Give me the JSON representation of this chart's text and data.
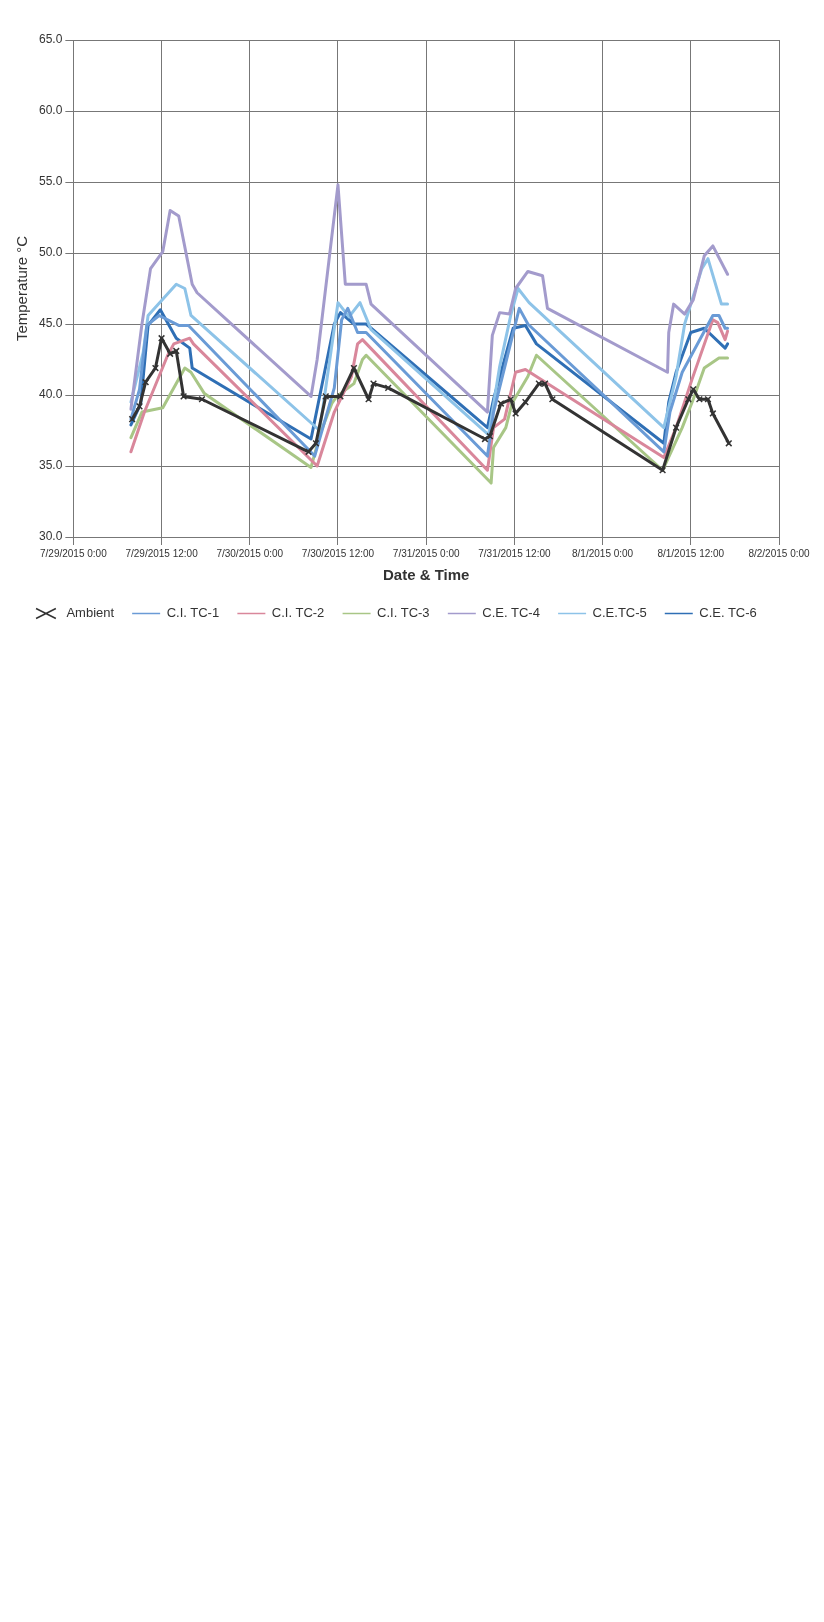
{
  "chart_data": {
    "type": "line",
    "xlabel": "Date & Time",
    "ylabel": "Temperature °C",
    "grid": true,
    "legend": "bottom",
    "marker": "none",
    "line_style": "solid",
    "xlim": [
      "2015-07-29T00:00",
      "2015-08-02T00:00"
    ],
    "xticks": [
      {
        "value": "2015-07-29T00:00",
        "label": "7/29/2015 0:00"
      },
      {
        "value": "2015-07-29T12:00",
        "label": "7/29/2015 12:00"
      },
      {
        "value": "2015-07-30T00:00",
        "label": "7/30/2015 0:00"
      },
      {
        "value": "2015-07-30T12:00",
        "label": "7/30/2015 12:00"
      },
      {
        "value": "2015-07-31T00:00",
        "label": "7/31/2015 0:00"
      },
      {
        "value": "2015-07-31T12:00",
        "label": "7/31/2015 12:00"
      },
      {
        "value": "2015-08-01T00:00",
        "label": "8/1/2015 0:00"
      },
      {
        "value": "2015-08-01T12:00",
        "label": "8/1/2015 12:00"
      },
      {
        "value": "2015-08-02T00:00",
        "label": "8/2/2015 0:00"
      }
    ],
    "ylim": [
      30,
      65
    ],
    "yticks": [
      {
        "value": 30,
        "label": "30.0"
      },
      {
        "value": 35,
        "label": "35.0"
      },
      {
        "value": 40,
        "label": "40.0"
      },
      {
        "value": 45,
        "label": "45.0"
      },
      {
        "value": 50,
        "label": "50.0"
      },
      {
        "value": 55,
        "label": "55.0"
      },
      {
        "value": 60,
        "label": "60.0"
      },
      {
        "value": 65,
        "label": "65.0"
      }
    ],
    "series": [
      {
        "name": "Ambient",
        "color": "#333333",
        "marker": "cross",
        "x": [
          "2015-07-29T08:00",
          "2015-07-29T09:00",
          "2015-07-29T09:50",
          "2015-07-29T11:10",
          "2015-07-29T12:00",
          "2015-07-29T13:10",
          "2015-07-29T14:00",
          "2015-07-29T15:00",
          "2015-07-29T17:30",
          "2015-07-30T08:00",
          "2015-07-30T09:00",
          "2015-07-30T10:20",
          "2015-07-30T12:20",
          "2015-07-30T14:10",
          "2015-07-30T16:10",
          "2015-07-30T16:50",
          "2015-07-30T18:50",
          "2015-07-31T08:00",
          "2015-07-31T08:40",
          "2015-07-31T10:10",
          "2015-07-31T11:30",
          "2015-07-31T12:10",
          "2015-07-31T13:30",
          "2015-07-31T15:20",
          "2015-07-31T16:10",
          "2015-07-31T17:10",
          "2015-08-01T08:10",
          "2015-08-01T10:00",
          "2015-08-01T11:40",
          "2015-08-01T12:20",
          "2015-08-01T13:10",
          "2015-08-01T14:20",
          "2015-08-01T15:00",
          "2015-08-01T17:10"
        ],
        "values": [
          38.3,
          39.2,
          40.9,
          41.9,
          44.0,
          42.9,
          43.1,
          39.9,
          39.7,
          36.0,
          36.6,
          39.9,
          39.9,
          41.9,
          39.7,
          40.8,
          40.5,
          36.9,
          37.1,
          39.4,
          39.7,
          38.7,
          39.5,
          40.8,
          40.8,
          39.7,
          34.7,
          37.7,
          39.7,
          40.4,
          39.7,
          39.7,
          38.7,
          36.6
        ]
      },
      {
        "name": "C.I. TC-1",
        "color": "#6a9bd6",
        "x": [
          "2015-07-29T07:50",
          "2015-07-29T09:00",
          "2015-07-29T10:00",
          "2015-07-29T11:40",
          "2015-07-29T14:20",
          "2015-07-29T15:40",
          "2015-07-30T08:50",
          "2015-07-30T11:30",
          "2015-07-30T12:30",
          "2015-07-30T13:20",
          "2015-07-30T14:40",
          "2015-07-30T15:50",
          "2015-07-31T08:20",
          "2015-07-31T09:10",
          "2015-07-31T12:40",
          "2015-07-31T13:50",
          "2015-08-01T08:20",
          "2015-08-01T09:10",
          "2015-08-01T10:50",
          "2015-08-01T15:00",
          "2015-08-01T15:50",
          "2015-08-01T16:40",
          "2015-08-01T17:00"
        ],
        "values": [
          38.3,
          40.4,
          44.9,
          45.6,
          44.9,
          44.9,
          35.7,
          40.5,
          45.3,
          46.1,
          44.4,
          44.4,
          35.7,
          38.8,
          46.1,
          45.0,
          36.0,
          38.8,
          41.6,
          45.6,
          45.6,
          44.7,
          44.7
        ]
      },
      {
        "name": "C.I. TC-2",
        "color": "#d9879b",
        "x": [
          "2015-07-29T07:50",
          "2015-07-29T09:40",
          "2015-07-29T12:50",
          "2015-07-29T13:40",
          "2015-07-29T15:50",
          "2015-07-29T16:20",
          "2015-07-30T09:10",
          "2015-07-30T11:30",
          "2015-07-30T12:20",
          "2015-07-30T13:50",
          "2015-07-30T14:40",
          "2015-07-30T15:20",
          "2015-07-31T08:20",
          "2015-07-31T09:10",
          "2015-07-31T10:40",
          "2015-07-31T12:10",
          "2015-07-31T13:30",
          "2015-08-01T08:20",
          "2015-08-01T10:00",
          "2015-08-01T12:10",
          "2015-08-01T15:00",
          "2015-08-01T15:40",
          "2015-08-01T16:40",
          "2015-08-01T17:00"
        ],
        "values": [
          36.0,
          38.8,
          42.8,
          43.6,
          44.0,
          43.6,
          35.0,
          38.8,
          39.7,
          41.3,
          43.6,
          43.9,
          34.7,
          37.7,
          38.3,
          41.6,
          41.8,
          35.6,
          37.7,
          41.1,
          45.3,
          45.1,
          43.9,
          44.5
        ]
      },
      {
        "name": "C.I. TC-3",
        "color": "#a8c686",
        "x": [
          "2015-07-29T07:50",
          "2015-07-29T09:20",
          "2015-07-29T12:10",
          "2015-07-29T15:10",
          "2015-07-29T16:00",
          "2015-07-29T17:50",
          "2015-07-30T08:20",
          "2015-07-30T09:40",
          "2015-07-30T11:10",
          "2015-07-30T11:50",
          "2015-07-30T14:10",
          "2015-07-30T15:20",
          "2015-07-30T15:50",
          "2015-07-31T08:50",
          "2015-07-31T09:10",
          "2015-07-31T10:50",
          "2015-07-31T11:40",
          "2015-07-31T13:50",
          "2015-07-31T15:00",
          "2015-08-01T08:10",
          "2015-08-01T10:50",
          "2015-08-01T12:20",
          "2015-08-01T13:50",
          "2015-08-01T15:50",
          "2015-08-01T17:00"
        ],
        "values": [
          37.0,
          38.8,
          39.1,
          41.9,
          41.6,
          40.1,
          34.9,
          37.4,
          39.4,
          39.9,
          40.8,
          42.5,
          42.8,
          33.8,
          36.3,
          37.7,
          39.4,
          41.3,
          42.8,
          34.7,
          37.7,
          39.7,
          41.9,
          42.6,
          42.6
        ]
      },
      {
        "name": "C.E. TC-4",
        "color": "#a39bcc",
        "x": [
          "2015-07-29T07:50",
          "2015-07-29T09:20",
          "2015-07-29T10:30",
          "2015-07-29T12:10",
          "2015-07-29T13:10",
          "2015-07-29T14:20",
          "2015-07-29T16:10",
          "2015-07-29T16:50",
          "2015-07-30T08:20",
          "2015-07-30T09:10",
          "2015-07-30T12:00",
          "2015-07-30T13:00",
          "2015-07-30T15:50",
          "2015-07-30T16:30",
          "2015-07-31T08:20",
          "2015-07-31T09:00",
          "2015-07-31T10:00",
          "2015-07-31T11:20",
          "2015-07-31T12:10",
          "2015-07-31T13:50",
          "2015-07-31T15:50",
          "2015-07-31T16:30",
          "2015-08-01T08:50",
          "2015-08-01T09:00",
          "2015-08-01T09:40",
          "2015-08-01T11:10",
          "2015-08-01T12:20",
          "2015-08-01T13:50",
          "2015-08-01T15:00",
          "2015-08-01T17:00"
        ],
        "values": [
          39.0,
          45.0,
          48.9,
          50.1,
          53.0,
          52.6,
          47.8,
          47.2,
          39.9,
          42.5,
          54.8,
          47.8,
          47.8,
          46.4,
          38.8,
          44.2,
          45.8,
          45.7,
          47.5,
          48.7,
          48.4,
          46.1,
          41.6,
          44.4,
          46.4,
          45.7,
          46.7,
          49.8,
          50.5,
          48.5
        ]
      },
      {
        "name": "C.E.TC-5",
        "color": "#8dc3e8",
        "x": [
          "2015-07-29T07:50",
          "2015-07-29T09:30",
          "2015-07-29T10:10",
          "2015-07-29T14:00",
          "2015-07-29T15:10",
          "2015-07-29T16:00",
          "2015-07-30T09:30",
          "2015-07-30T12:00",
          "2015-07-30T13:30",
          "2015-07-30T15:00",
          "2015-07-30T16:30",
          "2015-07-31T08:30",
          "2015-07-31T10:00",
          "2015-07-31T11:30",
          "2015-07-31T12:30",
          "2015-07-31T14:00",
          "2015-08-01T08:20",
          "2015-08-01T10:00",
          "2015-08-01T11:10",
          "2015-08-01T13:30",
          "2015-08-01T14:20",
          "2015-08-01T16:10",
          "2015-08-01T17:00"
        ],
        "values": [
          39.5,
          43.0,
          45.6,
          47.8,
          47.5,
          45.6,
          37.5,
          46.5,
          45.5,
          46.5,
          44.6,
          37.2,
          42.0,
          45.6,
          47.5,
          46.5,
          37.7,
          41.3,
          45.0,
          48.9,
          49.6,
          46.4,
          46.4
        ]
      },
      {
        "name": "C.E. TC-6",
        "color": "#2f6fb5",
        "x": [
          "2015-07-29T07:50",
          "2015-07-29T09:10",
          "2015-07-29T10:10",
          "2015-07-29T11:50",
          "2015-07-29T14:00",
          "2015-07-29T15:50",
          "2015-07-29T16:10",
          "2015-07-30T08:20",
          "2015-07-30T11:30",
          "2015-07-30T12:20",
          "2015-07-30T14:10",
          "2015-07-30T15:50",
          "2015-07-31T08:20",
          "2015-07-31T09:10",
          "2015-07-31T11:50",
          "2015-07-31T13:30",
          "2015-07-31T15:00",
          "2015-08-01T08:20",
          "2015-08-01T09:00",
          "2015-08-01T10:00",
          "2015-08-01T12:00",
          "2015-08-01T13:50",
          "2015-08-01T16:40",
          "2015-08-01T17:00"
        ],
        "values": [
          37.9,
          39.4,
          44.9,
          46.0,
          44.0,
          43.3,
          41.9,
          36.9,
          45.0,
          45.8,
          45.0,
          45.0,
          37.7,
          39.7,
          44.7,
          44.9,
          43.6,
          36.6,
          39.5,
          41.6,
          44.4,
          44.7,
          43.3,
          43.6
        ]
      }
    ]
  }
}
